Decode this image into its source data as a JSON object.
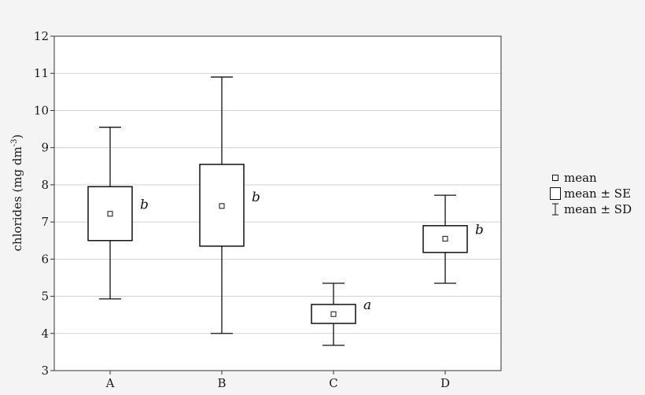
{
  "chart_data": {
    "type": "box",
    "ylabel_main": "chlorides (mg dm",
    "ylabel_sup": "-3",
    "ylabel_close": ")",
    "ylim": [
      3,
      12
    ],
    "yticks": [
      3,
      4,
      5,
      6,
      7,
      8,
      9,
      10,
      11,
      12
    ],
    "grid": true,
    "legend_position": "right",
    "categories": [
      "A",
      "B",
      "C",
      "D"
    ],
    "mean": [
      7.22,
      7.43,
      4.52,
      6.55
    ],
    "se_low": [
      6.5,
      6.35,
      4.27,
      6.18
    ],
    "se_high": [
      7.95,
      8.55,
      4.78,
      6.9
    ],
    "sd_low": [
      4.93,
      4.0,
      3.68,
      5.35
    ],
    "sd_high": [
      9.55,
      10.9,
      5.35,
      7.72
    ],
    "significance": [
      "b",
      "b",
      "a",
      "b"
    ]
  },
  "legend": [
    {
      "glyph": "mean-square-icon",
      "label": "mean"
    },
    {
      "glyph": "se-box-icon",
      "label": "mean ± SE"
    },
    {
      "glyph": "sd-whisker-icon",
      "label": "mean ± SD"
    }
  ]
}
